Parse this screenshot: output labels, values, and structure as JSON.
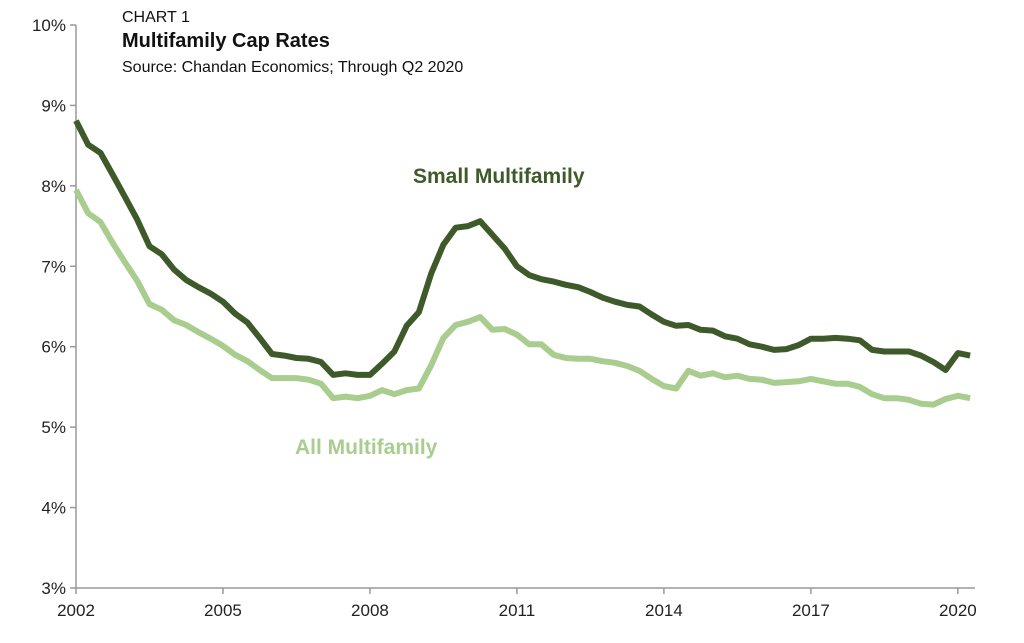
{
  "chart_data": {
    "type": "line",
    "kicker": "CHART 1",
    "title": "Multifamily Cap Rates",
    "subtitle": "Source: Chandan Economics; Through Q2 2020",
    "xlabel": "",
    "ylabel": "",
    "x_start": "2002 Q1",
    "x_frequency": "quarterly",
    "xlim": [
      2002,
      2020.35
    ],
    "ylim": [
      3,
      10
    ],
    "x_ticks": [
      "2002",
      "2005",
      "2008",
      "2011",
      "2014",
      "2017",
      "2020"
    ],
    "y_ticks": [
      "3%",
      "4%",
      "5%",
      "6%",
      "7%",
      "8%",
      "9%",
      "10%"
    ],
    "grid": false,
    "series": [
      {
        "name": "Small Multifamily",
        "color": "#3f5a2a",
        "values": [
          8.81,
          8.51,
          8.41,
          8.14,
          7.86,
          7.58,
          7.25,
          7.15,
          6.96,
          6.83,
          6.74,
          6.66,
          6.56,
          6.41,
          6.3,
          6.11,
          5.91,
          5.89,
          5.86,
          5.85,
          5.81,
          5.65,
          5.67,
          5.65,
          5.65,
          5.79,
          5.94,
          6.26,
          6.43,
          6.91,
          7.27,
          7.48,
          7.5,
          7.56,
          7.39,
          7.22,
          7.0,
          6.89,
          6.84,
          6.81,
          6.77,
          6.74,
          6.68,
          6.61,
          6.56,
          6.52,
          6.5,
          6.4,
          6.31,
          6.26,
          6.27,
          6.21,
          6.2,
          6.13,
          6.1,
          6.03,
          6.0,
          5.96,
          5.97,
          6.02,
          6.1,
          6.1,
          6.11,
          6.1,
          6.08,
          5.96,
          5.94,
          5.94,
          5.94,
          5.89,
          5.81,
          5.71,
          5.92,
          5.89
        ]
      },
      {
        "name": "All Multifamily",
        "color": "#a8cd8e",
        "values": [
          7.95,
          7.66,
          7.55,
          7.29,
          7.05,
          6.82,
          6.53,
          6.46,
          6.33,
          6.27,
          6.18,
          6.1,
          6.01,
          5.9,
          5.82,
          5.71,
          5.61,
          5.61,
          5.61,
          5.59,
          5.54,
          5.36,
          5.38,
          5.36,
          5.39,
          5.46,
          5.41,
          5.46,
          5.48,
          5.77,
          6.11,
          6.27,
          6.31,
          6.37,
          6.21,
          6.22,
          6.15,
          6.03,
          6.03,
          5.9,
          5.86,
          5.85,
          5.85,
          5.82,
          5.8,
          5.76,
          5.7,
          5.6,
          5.51,
          5.48,
          5.7,
          5.64,
          5.67,
          5.62,
          5.64,
          5.6,
          5.59,
          5.55,
          5.56,
          5.57,
          5.6,
          5.57,
          5.54,
          5.54,
          5.5,
          5.41,
          5.36,
          5.36,
          5.34,
          5.29,
          5.28,
          5.35,
          5.39,
          5.36
        ]
      }
    ]
  }
}
